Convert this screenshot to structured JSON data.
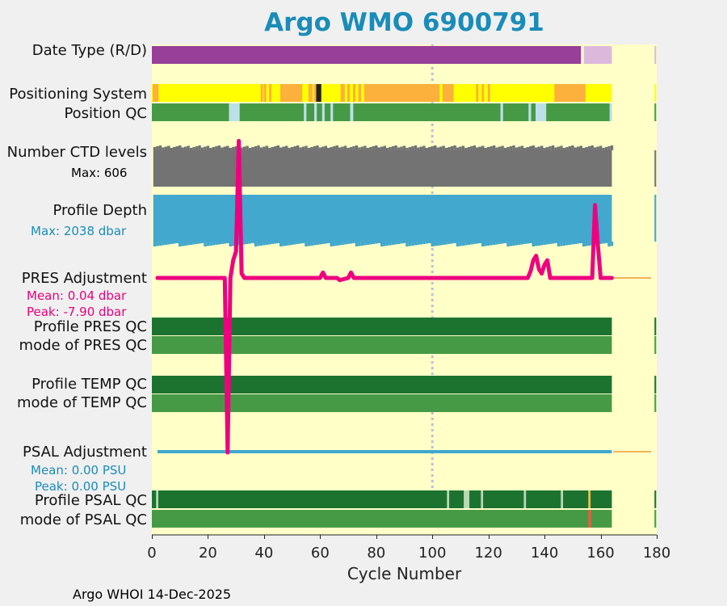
{
  "title": "Argo WMO 6900791",
  "footer": "Argo WHOI 14-Dec-2025",
  "colors": {
    "plot_bg": "#ffffc8",
    "realtime": "#983f99",
    "delayed": "#ddb8dd",
    "qc_good": "#1c7330",
    "qc_mode": "#479a45",
    "qc_light": "#bde0e8",
    "qc_bad": "#e06040",
    "pos_yellow": "#ffff00",
    "pos_orange": "#fbb13c",
    "ctd_gray": "#737373",
    "depth_blue": "#42a8cd",
    "pres_adj": "#ee007f",
    "psal_adj": "#40a8d0",
    "fill_line": "#f2b25a",
    "mean_text": "#e8007b",
    "psal_text": "#1a8cb8"
  },
  "labels": {
    "date_type": "Date Type (R/D)",
    "positioning": "Positioning System",
    "position_qc": "Position QC",
    "ctd_levels": "Number CTD levels",
    "ctd_max": "Max: 606",
    "profile_depth": "Profile Depth",
    "depth_max": "Max: 2038 dbar",
    "pres_adj": "PRES Adjustment",
    "pres_mean": "Mean: 0.04 dbar",
    "pres_peak": "Peak: -7.90 dbar",
    "profile_pres_qc": "Profile PRES QC",
    "mode_pres_qc": "mode of PRES QC",
    "profile_temp_qc": "Profile TEMP QC",
    "mode_temp_qc": "mode of TEMP QC",
    "psal_adj": "PSAL Adjustment",
    "psal_mean": "Mean: 0.00 PSU",
    "psal_peak": "Peak: 0.00 PSU",
    "profile_psal_qc": "Profile PSAL QC",
    "mode_psal_qc": "mode of PSAL QC"
  },
  "chart_data": {
    "type": "table",
    "title": "Argo WMO 6900791",
    "xlabel": "Cycle Number",
    "xlim": [
      0,
      180
    ],
    "xticks": [
      0,
      20,
      40,
      60,
      80,
      100,
      120,
      140,
      160,
      180
    ],
    "reference_line_x": 100,
    "cycles_range": [
      1,
      164
    ],
    "date_type": {
      "realtime_cycles": [
        1,
        153
      ],
      "delayed_cycles": [
        154,
        164
      ]
    },
    "pres_adjustment_series": {
      "name": "PRES Adjustment",
      "x": [
        2,
        26,
        27,
        28,
        29,
        30,
        31,
        32,
        33,
        40,
        60,
        61,
        62,
        66,
        67,
        70,
        71,
        72,
        134,
        135,
        136,
        137,
        138,
        139,
        140,
        141,
        142,
        157,
        158,
        159,
        160,
        164
      ],
      "y": [
        0,
        0,
        -7.9,
        0,
        0.8,
        1.2,
        6.2,
        0.2,
        0,
        0,
        0,
        0.25,
        0,
        0,
        -0.1,
        0,
        0.25,
        0,
        0,
        0.3,
        0.8,
        1.0,
        0.4,
        0.2,
        0.6,
        0.8,
        0,
        0,
        3.3,
        1.5,
        0,
        0
      ]
    },
    "psal_adjustment": {
      "value": 0,
      "cycles": [
        2,
        164
      ]
    }
  }
}
